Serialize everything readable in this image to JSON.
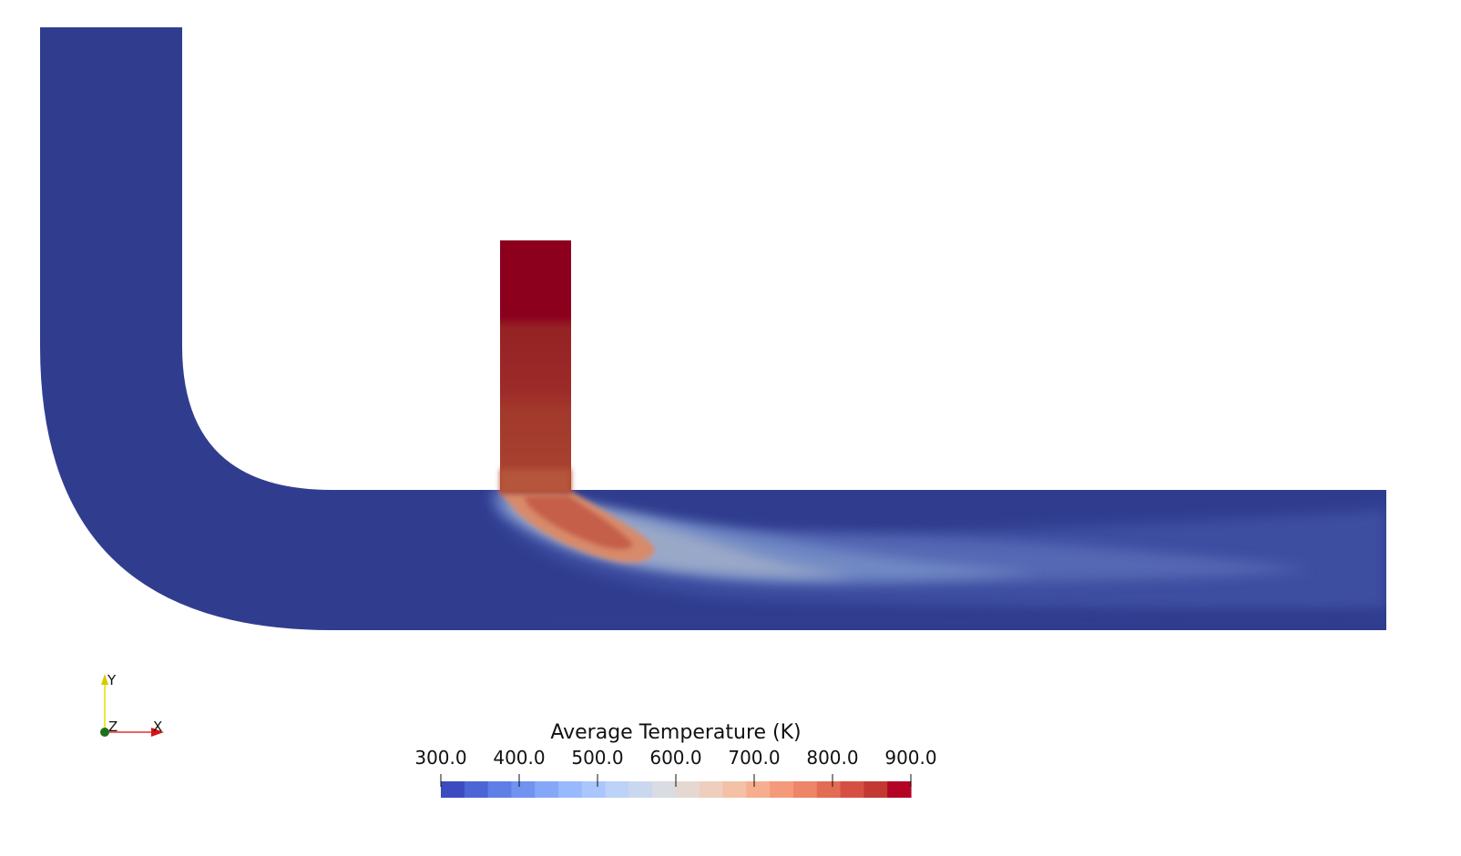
{
  "scalar_bar": {
    "title": "Average Temperature (K)",
    "tick_labels": [
      "300.0",
      "400.0",
      "500.0",
      "600.0",
      "700.0",
      "800.0",
      "900.0"
    ],
    "range": [
      300,
      900
    ],
    "color_bands": [
      "#3b4cc0",
      "#4c66d6",
      "#5f7fe6",
      "#7092f0",
      "#84a7f8",
      "#98b9fd",
      "#aac7fd",
      "#bcd2f6",
      "#cad8ef",
      "#d9dce1",
      "#e5d8d1",
      "#eecebd",
      "#f4c0a6",
      "#f6ae8e",
      "#f49a7b",
      "#ee8468",
      "#e36c55",
      "#d55042",
      "#c33831",
      "#b40426"
    ]
  },
  "orientation_axes": {
    "x_label": "X",
    "y_label": "Y",
    "z_label": "Z"
  },
  "field_colors": {
    "cold": "#303d8f",
    "hot": "#8c001e"
  }
}
